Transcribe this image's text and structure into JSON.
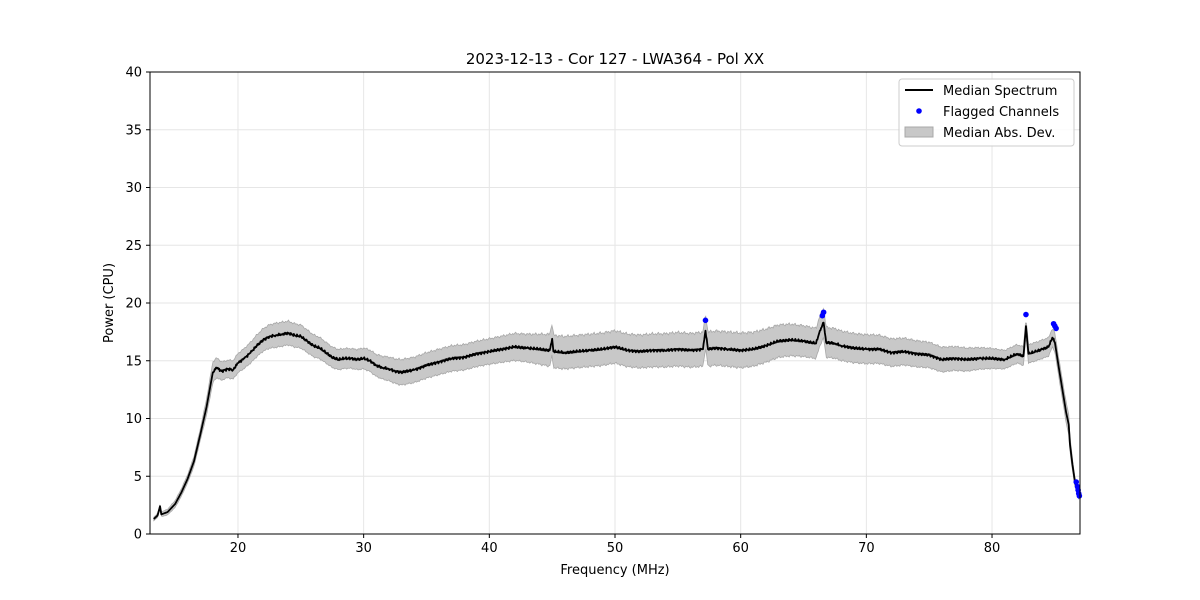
{
  "chart_data": {
    "type": "line",
    "title": "2023-12-13 - Cor 127 - LWA364 - Pol XX",
    "xlabel": "Frequency (MHz)",
    "ylabel": "Power (CPU)",
    "xlim": [
      13,
      87
    ],
    "ylim": [
      0,
      40
    ],
    "xticks": [
      20,
      30,
      40,
      50,
      60,
      70,
      80
    ],
    "yticks": [
      0,
      5,
      10,
      15,
      20,
      25,
      30,
      35,
      40
    ],
    "grid": true,
    "legend_position": "top-right",
    "colors": {
      "median": "#000000",
      "flagged": "#0000ff",
      "mad_fill": "#c8c8c8",
      "mad_edge": "#a8a8a8"
    },
    "series": [
      {
        "name": "Median Spectrum",
        "kind": "line",
        "points": [
          [
            13.3,
            1.3
          ],
          [
            13.6,
            1.6
          ],
          [
            13.8,
            2.4
          ],
          [
            13.9,
            1.7
          ],
          [
            14.4,
            1.9
          ],
          [
            15.0,
            2.6
          ],
          [
            15.5,
            3.6
          ],
          [
            16.0,
            4.8
          ],
          [
            16.5,
            6.3
          ],
          [
            17.0,
            8.6
          ],
          [
            17.5,
            11.0
          ],
          [
            18.0,
            14.0
          ],
          [
            18.3,
            14.4
          ],
          [
            18.7,
            14.1
          ],
          [
            19.2,
            14.3
          ],
          [
            19.6,
            14.2
          ],
          [
            20.0,
            14.8
          ],
          [
            20.5,
            15.2
          ],
          [
            21.0,
            15.7
          ],
          [
            21.5,
            16.3
          ],
          [
            22.0,
            16.8
          ],
          [
            22.5,
            17.1
          ],
          [
            23.0,
            17.2
          ],
          [
            23.5,
            17.3
          ],
          [
            24.0,
            17.4
          ],
          [
            24.5,
            17.2
          ],
          [
            25.0,
            17.1
          ],
          [
            25.5,
            16.7
          ],
          [
            26.0,
            16.3
          ],
          [
            26.5,
            16.1
          ],
          [
            27.0,
            15.7
          ],
          [
            27.5,
            15.3
          ],
          [
            28.0,
            15.1
          ],
          [
            28.5,
            15.2
          ],
          [
            29.0,
            15.2
          ],
          [
            29.5,
            15.1
          ],
          [
            30.0,
            15.2
          ],
          [
            30.5,
            15.0
          ],
          [
            31.0,
            14.6
          ],
          [
            31.5,
            14.4
          ],
          [
            32.0,
            14.3
          ],
          [
            32.5,
            14.1
          ],
          [
            33.0,
            14.0
          ],
          [
            34.0,
            14.2
          ],
          [
            35.0,
            14.6
          ],
          [
            36.0,
            14.9
          ],
          [
            37.0,
            15.2
          ],
          [
            38.0,
            15.3
          ],
          [
            39.0,
            15.6
          ],
          [
            40.0,
            15.8
          ],
          [
            41.0,
            16.0
          ],
          [
            42.0,
            16.2
          ],
          [
            43.0,
            16.1
          ],
          [
            44.0,
            16.0
          ],
          [
            44.8,
            15.9
          ],
          [
            45.0,
            16.9
          ],
          [
            45.1,
            15.8
          ],
          [
            46.0,
            15.7
          ],
          [
            47.0,
            15.8
          ],
          [
            48.0,
            15.9
          ],
          [
            49.0,
            16.0
          ],
          [
            50.0,
            16.2
          ],
          [
            51.0,
            15.9
          ],
          [
            52.0,
            15.8
          ],
          [
            53.0,
            15.9
          ],
          [
            54.0,
            15.9
          ],
          [
            55.0,
            16.0
          ],
          [
            56.0,
            15.9
          ],
          [
            57.0,
            16.0
          ],
          [
            57.2,
            17.6
          ],
          [
            57.4,
            16.0
          ],
          [
            58.0,
            16.1
          ],
          [
            59.0,
            16.0
          ],
          [
            60.0,
            15.9
          ],
          [
            61.0,
            16.0
          ],
          [
            62.0,
            16.3
          ],
          [
            63.0,
            16.7
          ],
          [
            64.0,
            16.8
          ],
          [
            65.0,
            16.7
          ],
          [
            66.0,
            16.5
          ],
          [
            66.3,
            17.6
          ],
          [
            66.6,
            18.3
          ],
          [
            66.8,
            16.6
          ],
          [
            67.5,
            16.5
          ],
          [
            68.0,
            16.3
          ],
          [
            69.0,
            16.1
          ],
          [
            70.0,
            16.0
          ],
          [
            71.0,
            16.0
          ],
          [
            72.0,
            15.7
          ],
          [
            73.0,
            15.8
          ],
          [
            74.0,
            15.6
          ],
          [
            75.0,
            15.5
          ],
          [
            76.0,
            15.1
          ],
          [
            77.0,
            15.2
          ],
          [
            78.0,
            15.1
          ],
          [
            79.0,
            15.2
          ],
          [
            80.0,
            15.2
          ],
          [
            81.0,
            15.1
          ],
          [
            81.6,
            15.4
          ],
          [
            82.0,
            15.6
          ],
          [
            82.5,
            15.4
          ],
          [
            82.7,
            18.0
          ],
          [
            82.9,
            15.6
          ],
          [
            83.5,
            15.8
          ],
          [
            84.0,
            16.0
          ],
          [
            84.5,
            16.2
          ],
          [
            84.8,
            17.0
          ],
          [
            85.0,
            16.6
          ],
          [
            85.3,
            14.5
          ],
          [
            85.6,
            12.5
          ],
          [
            85.9,
            10.5
          ],
          [
            86.1,
            9.5
          ],
          [
            86.2,
            7.8
          ],
          [
            86.4,
            6.0
          ],
          [
            86.6,
            4.5
          ],
          [
            86.8,
            3.6
          ],
          [
            86.9,
            3.2
          ]
        ]
      },
      {
        "name": "Flagged Channels",
        "kind": "scatter",
        "points": [
          [
            57.2,
            18.5
          ],
          [
            66.5,
            18.9
          ],
          [
            66.6,
            19.2
          ],
          [
            82.7,
            19.0
          ],
          [
            84.9,
            18.2
          ],
          [
            85.0,
            18.0
          ],
          [
            85.1,
            17.8
          ],
          [
            86.7,
            4.5
          ],
          [
            86.8,
            4.1
          ],
          [
            86.85,
            3.8
          ],
          [
            86.9,
            3.5
          ],
          [
            86.95,
            3.3
          ]
        ]
      },
      {
        "name": "Median Abs. Dev.",
        "kind": "band",
        "half_width": [
          [
            13.3,
            0.15
          ],
          [
            15.0,
            0.3
          ],
          [
            16.0,
            0.35
          ],
          [
            17.0,
            0.5
          ],
          [
            18.0,
            0.9
          ],
          [
            19.0,
            0.75
          ],
          [
            21.0,
            0.9
          ],
          [
            23.0,
            1.05
          ],
          [
            25.0,
            1.0
          ],
          [
            27.0,
            0.9
          ],
          [
            29.0,
            0.85
          ],
          [
            31.0,
            0.95
          ],
          [
            33.0,
            1.1
          ],
          [
            36.0,
            1.1
          ],
          [
            40.0,
            1.1
          ],
          [
            43.0,
            1.2
          ],
          [
            45.0,
            1.4
          ],
          [
            50.0,
            1.4
          ],
          [
            55.0,
            1.45
          ],
          [
            60.0,
            1.5
          ],
          [
            63.0,
            1.4
          ],
          [
            66.0,
            1.3
          ],
          [
            70.0,
            1.25
          ],
          [
            75.0,
            1.1
          ],
          [
            78.0,
            1.0
          ],
          [
            81.0,
            0.8
          ],
          [
            83.0,
            0.8
          ],
          [
            84.5,
            0.8
          ],
          [
            85.5,
            0.8
          ],
          [
            86.0,
            0.9
          ],
          [
            86.5,
            0.4
          ],
          [
            86.9,
            0.2
          ]
        ]
      }
    ]
  }
}
